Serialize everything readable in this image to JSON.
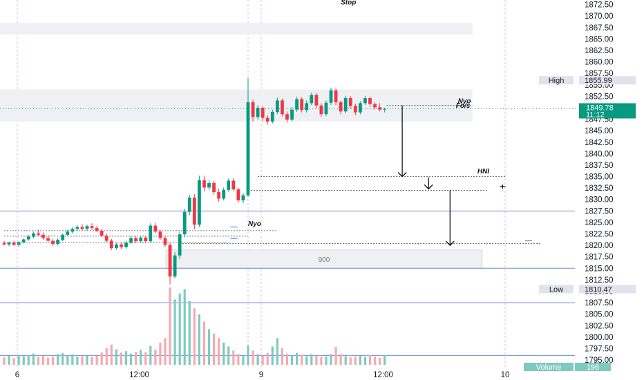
{
  "chart_data": {
    "type": "candlestick",
    "title": "",
    "y_axis": {
      "range": [
        1793.5,
        1873.5
      ],
      "ticks": [
        "1872.50",
        "1870.00",
        "1867.50",
        "1865.00",
        "1862.50",
        "1860.00",
        "1857.50",
        "1855.00",
        "1852.50",
        "1850.00",
        "1847.50",
        "1845.00",
        "1842.50",
        "1840.00",
        "1837.50",
        "1835.00",
        "1832.50",
        "1830.00",
        "1827.50",
        "1825.00",
        "1822.50",
        "1820.00",
        "1817.50",
        "1815.00",
        "1812.50",
        "1810.00",
        "1807.50",
        "1805.00",
        "1802.50",
        "1800.00",
        "1797.50",
        "1795.00"
      ]
    },
    "x_axis": {
      "ticks": [
        {
          "label": "6",
          "x": 0.0
        },
        {
          "label": "12:00",
          "x": 12.5
        },
        {
          "label": "9",
          "x": 25.0
        },
        {
          "label": "12:00",
          "x": 37.5
        },
        {
          "label": "10",
          "x": 50.0
        }
      ]
    },
    "last_price": {
      "value": 1849.78,
      "text": "1849.78",
      "countdown": "11:12",
      "color": "#089981"
    },
    "high_marker": {
      "label": "High",
      "value": 1855.99,
      "text": "1855.99"
    },
    "low_marker": {
      "label": "Low",
      "value": 1810.47,
      "text": "1810.47"
    },
    "volume_badge": {
      "label": "Volume",
      "value": "196"
    },
    "colors": {
      "up": "#089981",
      "down": "#f23645",
      "up_vol": "#7ecac0",
      "down_vol": "#f7a8ae",
      "zone": "#eef0f3",
      "blue_line": "#6d8bd8",
      "ref_line": "#4a90e2",
      "grid_vertical": "#f2b8bd",
      "stop_text": "#f23645"
    },
    "zones": [
      {
        "x_range": [
          0,
          48
        ],
        "y_range": [
          1866.0,
          1868.5
        ]
      },
      {
        "x_range": [
          0,
          48
        ],
        "y_range": [
          1847.0,
          1854.0
        ]
      },
      {
        "x_range": [
          17,
          49
        ],
        "y_range": [
          1815.0,
          1819.0
        ],
        "label": "900"
      }
    ],
    "horizontal_lines": [
      {
        "y": 1827.5,
        "style": "solid"
      },
      {
        "y": 1815.0,
        "style": "solid"
      },
      {
        "y": 1807.5,
        "style": "solid"
      },
      {
        "y": 1796.0,
        "style": "solid"
      },
      {
        "y": 1849.78,
        "style": "dotted-green"
      }
    ],
    "annotations": [
      {
        "text": "Stop",
        "x": 34.5,
        "y": 1872.5,
        "color": "#f23645"
      },
      {
        "text": "Nyo",
        "x": 46.5,
        "y": 1851.0
      },
      {
        "text": "Fo/s",
        "x": 46.3,
        "y": 1850.0
      },
      {
        "text": "HNI",
        "x": 48.5,
        "y": 1835.7
      },
      {
        "text": "Nyo",
        "x": 25.0,
        "y": 1824.2
      }
    ],
    "arrows": [
      {
        "x": 40.8,
        "from": 1850.5,
        "to": 1835.0
      },
      {
        "x": 43.5,
        "from": 1834.8,
        "to": 1832.3
      },
      {
        "x": 45.7,
        "from": 1832.0,
        "to": 1820.0
      }
    ],
    "candles": [
      {
        "x": 0.0,
        "o": 1820.5,
        "h": 1821.0,
        "l": 1820.0,
        "c": 1820.2
      },
      {
        "x": 0.5,
        "o": 1820.2,
        "h": 1820.8,
        "l": 1819.8,
        "c": 1820.6
      },
      {
        "x": 1.0,
        "o": 1820.6,
        "h": 1821.0,
        "l": 1819.9,
        "c": 1820.1
      },
      {
        "x": 1.5,
        "o": 1820.1,
        "h": 1820.9,
        "l": 1819.7,
        "c": 1820.7
      },
      {
        "x": 2.0,
        "o": 1820.7,
        "h": 1821.5,
        "l": 1820.4,
        "c": 1821.3
      },
      {
        "x": 2.5,
        "o": 1821.3,
        "h": 1822.2,
        "l": 1821.0,
        "c": 1821.9
      },
      {
        "x": 3.0,
        "o": 1821.9,
        "h": 1823.0,
        "l": 1821.5,
        "c": 1822.6
      },
      {
        "x": 3.5,
        "o": 1822.6,
        "h": 1823.4,
        "l": 1822.0,
        "c": 1822.3
      },
      {
        "x": 4.0,
        "o": 1822.3,
        "h": 1822.8,
        "l": 1821.2,
        "c": 1821.6
      },
      {
        "x": 4.5,
        "o": 1821.6,
        "h": 1822.2,
        "l": 1820.8,
        "c": 1821.0
      },
      {
        "x": 5.0,
        "o": 1821.0,
        "h": 1821.4,
        "l": 1819.9,
        "c": 1820.3
      },
      {
        "x": 5.5,
        "o": 1820.3,
        "h": 1821.6,
        "l": 1820.0,
        "c": 1821.2
      },
      {
        "x": 6.0,
        "o": 1821.2,
        "h": 1822.6,
        "l": 1820.9,
        "c": 1822.3
      },
      {
        "x": 6.5,
        "o": 1822.3,
        "h": 1823.4,
        "l": 1822.0,
        "c": 1823.0
      },
      {
        "x": 7.0,
        "o": 1823.0,
        "h": 1824.0,
        "l": 1822.6,
        "c": 1823.6
      },
      {
        "x": 7.5,
        "o": 1823.6,
        "h": 1824.4,
        "l": 1823.1,
        "c": 1824.0
      },
      {
        "x": 8.0,
        "o": 1824.0,
        "h": 1824.6,
        "l": 1823.3,
        "c": 1823.6
      },
      {
        "x": 8.5,
        "o": 1823.6,
        "h": 1824.5,
        "l": 1823.2,
        "c": 1824.2
      },
      {
        "x": 9.0,
        "o": 1824.2,
        "h": 1824.8,
        "l": 1823.4,
        "c": 1823.8
      },
      {
        "x": 9.5,
        "o": 1823.8,
        "h": 1824.3,
        "l": 1822.9,
        "c": 1823.2
      },
      {
        "x": 10.0,
        "o": 1823.2,
        "h": 1823.6,
        "l": 1821.8,
        "c": 1822.1
      },
      {
        "x": 10.5,
        "o": 1822.1,
        "h": 1822.6,
        "l": 1820.7,
        "c": 1821.0
      },
      {
        "x": 11.0,
        "o": 1821.0,
        "h": 1821.4,
        "l": 1819.0,
        "c": 1819.4
      },
      {
        "x": 11.5,
        "o": 1819.4,
        "h": 1820.6,
        "l": 1819.1,
        "c": 1820.2
      },
      {
        "x": 12.0,
        "o": 1820.2,
        "h": 1820.6,
        "l": 1819.2,
        "c": 1819.6
      },
      {
        "x": 12.5,
        "o": 1819.6,
        "h": 1821.0,
        "l": 1819.3,
        "c": 1820.6
      },
      {
        "x": 13.0,
        "o": 1820.6,
        "h": 1822.0,
        "l": 1820.3,
        "c": 1821.6
      },
      {
        "x": 13.5,
        "o": 1821.6,
        "h": 1822.0,
        "l": 1820.5,
        "c": 1820.9
      },
      {
        "x": 14.0,
        "o": 1820.9,
        "h": 1822.0,
        "l": 1820.6,
        "c": 1821.7
      },
      {
        "x": 14.5,
        "o": 1821.7,
        "h": 1822.1,
        "l": 1820.6,
        "c": 1820.9
      },
      {
        "x": 15.0,
        "o": 1820.9,
        "h": 1824.8,
        "l": 1820.6,
        "c": 1824.3
      },
      {
        "x": 15.5,
        "o": 1824.3,
        "h": 1824.9,
        "l": 1822.6,
        "c": 1823.0
      },
      {
        "x": 16.0,
        "o": 1823.0,
        "h": 1823.4,
        "l": 1821.2,
        "c": 1821.6
      },
      {
        "x": 16.5,
        "o": 1821.6,
        "h": 1822.0,
        "l": 1819.6,
        "c": 1820.1
      },
      {
        "x": 17.0,
        "o": 1820.1,
        "h": 1820.6,
        "l": 1811.5,
        "c": 1813.2
      },
      {
        "x": 17.5,
        "o": 1813.2,
        "h": 1818.5,
        "l": 1812.8,
        "c": 1817.8
      },
      {
        "x": 18.0,
        "o": 1817.8,
        "h": 1823.0,
        "l": 1817.0,
        "c": 1822.4
      },
      {
        "x": 18.5,
        "o": 1822.4,
        "h": 1828.0,
        "l": 1821.8,
        "c": 1827.3
      },
      {
        "x": 19.0,
        "o": 1827.3,
        "h": 1831.0,
        "l": 1826.6,
        "c": 1830.4
      },
      {
        "x": 19.5,
        "o": 1830.4,
        "h": 1831.2,
        "l": 1823.5,
        "c": 1824.5
      },
      {
        "x": 20.0,
        "o": 1824.5,
        "h": 1835.2,
        "l": 1824.0,
        "c": 1834.2
      },
      {
        "x": 20.5,
        "o": 1834.2,
        "h": 1835.2,
        "l": 1831.8,
        "c": 1832.6
      },
      {
        "x": 21.0,
        "o": 1832.6,
        "h": 1834.2,
        "l": 1832.0,
        "c": 1833.6
      },
      {
        "x": 21.5,
        "o": 1833.6,
        "h": 1834.0,
        "l": 1831.0,
        "c": 1831.6
      },
      {
        "x": 22.0,
        "o": 1831.6,
        "h": 1832.4,
        "l": 1829.5,
        "c": 1830.2
      },
      {
        "x": 22.5,
        "o": 1830.2,
        "h": 1832.6,
        "l": 1829.8,
        "c": 1832.1
      },
      {
        "x": 23.0,
        "o": 1832.1,
        "h": 1834.6,
        "l": 1831.7,
        "c": 1834.1
      },
      {
        "x": 23.5,
        "o": 1834.1,
        "h": 1834.6,
        "l": 1831.8,
        "c": 1832.2
      },
      {
        "x": 24.0,
        "o": 1832.2,
        "h": 1832.6,
        "l": 1829.3,
        "c": 1829.8
      },
      {
        "x": 24.5,
        "o": 1829.8,
        "h": 1831.4,
        "l": 1829.2,
        "c": 1830.9
      },
      {
        "x": 25.0,
        "o": 1830.9,
        "h": 1856.5,
        "l": 1830.6,
        "c": 1851.2
      },
      {
        "x": 25.5,
        "o": 1851.2,
        "h": 1851.8,
        "l": 1847.0,
        "c": 1848.0
      },
      {
        "x": 26.0,
        "o": 1848.0,
        "h": 1850.6,
        "l": 1847.4,
        "c": 1850.0
      },
      {
        "x": 26.5,
        "o": 1850.0,
        "h": 1850.4,
        "l": 1847.1,
        "c": 1847.8
      },
      {
        "x": 27.0,
        "o": 1847.8,
        "h": 1848.4,
        "l": 1846.3,
        "c": 1847.0
      },
      {
        "x": 27.5,
        "o": 1847.0,
        "h": 1849.6,
        "l": 1846.6,
        "c": 1849.1
      },
      {
        "x": 28.0,
        "o": 1849.1,
        "h": 1852.2,
        "l": 1848.6,
        "c": 1851.6
      },
      {
        "x": 28.5,
        "o": 1851.6,
        "h": 1852.0,
        "l": 1848.1,
        "c": 1848.6
      },
      {
        "x": 29.0,
        "o": 1848.6,
        "h": 1849.2,
        "l": 1846.8,
        "c": 1847.4
      },
      {
        "x": 29.5,
        "o": 1847.4,
        "h": 1850.2,
        "l": 1847.0,
        "c": 1849.6
      },
      {
        "x": 30.0,
        "o": 1849.6,
        "h": 1852.4,
        "l": 1849.1,
        "c": 1851.9
      },
      {
        "x": 30.5,
        "o": 1851.9,
        "h": 1852.3,
        "l": 1849.0,
        "c": 1849.5
      },
      {
        "x": 31.0,
        "o": 1849.5,
        "h": 1851.6,
        "l": 1849.0,
        "c": 1851.0
      },
      {
        "x": 31.5,
        "o": 1851.0,
        "h": 1853.3,
        "l": 1850.6,
        "c": 1852.8
      },
      {
        "x": 32.0,
        "o": 1852.8,
        "h": 1853.2,
        "l": 1849.9,
        "c": 1850.5
      },
      {
        "x": 32.5,
        "o": 1850.5,
        "h": 1851.0,
        "l": 1848.0,
        "c": 1848.6
      },
      {
        "x": 33.0,
        "o": 1848.6,
        "h": 1851.6,
        "l": 1848.2,
        "c": 1851.1
      },
      {
        "x": 33.5,
        "o": 1851.1,
        "h": 1854.4,
        "l": 1850.6,
        "c": 1853.8
      },
      {
        "x": 34.0,
        "o": 1853.8,
        "h": 1854.2,
        "l": 1850.6,
        "c": 1851.2
      },
      {
        "x": 34.5,
        "o": 1851.2,
        "h": 1851.6,
        "l": 1848.6,
        "c": 1849.2
      },
      {
        "x": 35.0,
        "o": 1849.2,
        "h": 1852.6,
        "l": 1848.8,
        "c": 1852.1
      },
      {
        "x": 35.5,
        "o": 1852.1,
        "h": 1852.5,
        "l": 1849.8,
        "c": 1850.4
      },
      {
        "x": 36.0,
        "o": 1850.4,
        "h": 1850.9,
        "l": 1848.4,
        "c": 1849.0
      },
      {
        "x": 36.5,
        "o": 1849.0,
        "h": 1851.4,
        "l": 1848.6,
        "c": 1851.0
      },
      {
        "x": 37.0,
        "o": 1851.0,
        "h": 1852.6,
        "l": 1850.6,
        "c": 1852.1
      },
      {
        "x": 37.5,
        "o": 1852.1,
        "h": 1852.5,
        "l": 1850.2,
        "c": 1850.8
      },
      {
        "x": 38.0,
        "o": 1850.8,
        "h": 1851.2,
        "l": 1849.6,
        "c": 1850.1
      },
      {
        "x": 38.5,
        "o": 1850.1,
        "h": 1851.0,
        "l": 1849.2,
        "c": 1849.6
      },
      {
        "x": 39.0,
        "o": 1849.6,
        "h": 1850.0,
        "l": 1849.0,
        "c": 1849.78
      }
    ],
    "volumes": [
      {
        "x": 0.0,
        "v": 2.5,
        "up": false
      },
      {
        "x": 0.5,
        "v": 3.1,
        "up": true
      },
      {
        "x": 1.0,
        "v": 2.2,
        "up": false
      },
      {
        "x": 1.5,
        "v": 3.4,
        "up": true
      },
      {
        "x": 2.0,
        "v": 2.9,
        "up": true
      },
      {
        "x": 2.5,
        "v": 3.3,
        "up": true
      },
      {
        "x": 3.0,
        "v": 3.8,
        "up": true
      },
      {
        "x": 3.5,
        "v": 2.6,
        "up": false
      },
      {
        "x": 4.0,
        "v": 3.0,
        "up": false
      },
      {
        "x": 4.5,
        "v": 2.4,
        "up": false
      },
      {
        "x": 5.0,
        "v": 2.8,
        "up": false
      },
      {
        "x": 5.5,
        "v": 3.6,
        "up": true
      },
      {
        "x": 6.0,
        "v": 3.9,
        "up": true
      },
      {
        "x": 6.5,
        "v": 3.2,
        "up": true
      },
      {
        "x": 7.0,
        "v": 3.5,
        "up": true
      },
      {
        "x": 7.5,
        "v": 2.7,
        "up": true
      },
      {
        "x": 8.0,
        "v": 2.9,
        "up": false
      },
      {
        "x": 8.5,
        "v": 3.1,
        "up": true
      },
      {
        "x": 9.0,
        "v": 2.6,
        "up": false
      },
      {
        "x": 9.5,
        "v": 3.0,
        "up": false
      },
      {
        "x": 10.0,
        "v": 4.2,
        "up": false
      },
      {
        "x": 10.5,
        "v": 5.6,
        "up": false
      },
      {
        "x": 11.0,
        "v": 6.8,
        "up": false
      },
      {
        "x": 11.5,
        "v": 5.2,
        "up": true
      },
      {
        "x": 12.0,
        "v": 4.1,
        "up": false
      },
      {
        "x": 12.5,
        "v": 4.6,
        "up": true
      },
      {
        "x": 13.0,
        "v": 3.8,
        "up": true
      },
      {
        "x": 13.5,
        "v": 4.4,
        "up": false
      },
      {
        "x": 14.0,
        "v": 5.0,
        "up": true
      },
      {
        "x": 14.5,
        "v": 4.2,
        "up": false
      },
      {
        "x": 15.0,
        "v": 6.3,
        "up": true
      },
      {
        "x": 15.5,
        "v": 5.1,
        "up": false
      },
      {
        "x": 16.0,
        "v": 7.5,
        "up": false
      },
      {
        "x": 16.5,
        "v": 9.0,
        "up": false
      },
      {
        "x": 17.0,
        "v": 26.0,
        "up": false
      },
      {
        "x": 17.5,
        "v": 22.0,
        "up": true
      },
      {
        "x": 18.0,
        "v": 24.0,
        "up": true
      },
      {
        "x": 18.5,
        "v": 25.5,
        "up": true
      },
      {
        "x": 19.0,
        "v": 21.5,
        "up": true
      },
      {
        "x": 19.5,
        "v": 19.0,
        "up": false
      },
      {
        "x": 20.0,
        "v": 17.0,
        "up": true
      },
      {
        "x": 20.5,
        "v": 14.5,
        "up": false
      },
      {
        "x": 21.0,
        "v": 12.0,
        "up": true
      },
      {
        "x": 21.5,
        "v": 10.5,
        "up": false
      },
      {
        "x": 22.0,
        "v": 9.0,
        "up": false
      },
      {
        "x": 22.5,
        "v": 7.5,
        "up": true
      },
      {
        "x": 23.0,
        "v": 6.2,
        "up": true
      },
      {
        "x": 23.5,
        "v": 4.8,
        "up": false
      },
      {
        "x": 24.0,
        "v": 3.6,
        "up": false
      },
      {
        "x": 24.5,
        "v": 3.0,
        "up": true
      },
      {
        "x": 25.0,
        "v": 6.5,
        "up": true
      },
      {
        "x": 25.5,
        "v": 4.8,
        "up": false
      },
      {
        "x": 26.0,
        "v": 3.6,
        "up": true
      },
      {
        "x": 26.5,
        "v": 3.0,
        "up": false
      },
      {
        "x": 27.0,
        "v": 4.0,
        "up": false
      },
      {
        "x": 27.5,
        "v": 6.2,
        "up": true
      },
      {
        "x": 28.0,
        "v": 9.0,
        "up": true
      },
      {
        "x": 28.5,
        "v": 5.6,
        "up": false
      },
      {
        "x": 29.0,
        "v": 3.6,
        "up": false
      },
      {
        "x": 29.5,
        "v": 3.2,
        "up": true
      },
      {
        "x": 30.0,
        "v": 4.0,
        "up": true
      },
      {
        "x": 30.5,
        "v": 3.4,
        "up": false
      },
      {
        "x": 31.0,
        "v": 2.9,
        "up": true
      },
      {
        "x": 31.5,
        "v": 3.6,
        "up": true
      },
      {
        "x": 32.0,
        "v": 3.0,
        "up": false
      },
      {
        "x": 32.5,
        "v": 2.6,
        "up": false
      },
      {
        "x": 33.0,
        "v": 2.8,
        "up": true
      },
      {
        "x": 33.5,
        "v": 3.6,
        "up": true
      },
      {
        "x": 34.0,
        "v": 6.0,
        "up": false
      },
      {
        "x": 34.5,
        "v": 3.6,
        "up": false
      },
      {
        "x": 35.0,
        "v": 2.9,
        "up": true
      },
      {
        "x": 35.5,
        "v": 2.5,
        "up": false
      },
      {
        "x": 36.0,
        "v": 2.7,
        "up": false
      },
      {
        "x": 36.5,
        "v": 3.0,
        "up": true
      },
      {
        "x": 37.0,
        "v": 2.6,
        "up": true
      },
      {
        "x": 37.5,
        "v": 3.3,
        "up": false
      },
      {
        "x": 38.0,
        "v": 2.8,
        "up": false
      },
      {
        "x": 38.5,
        "v": 2.4,
        "up": false
      },
      {
        "x": 39.0,
        "v": 3.3,
        "up": true
      }
    ]
  }
}
